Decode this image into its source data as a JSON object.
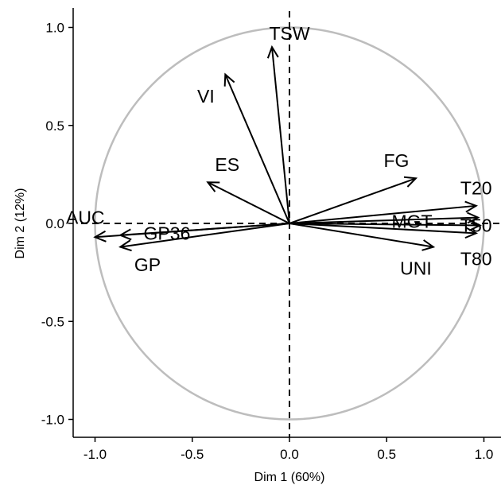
{
  "chart_data": {
    "type": "scatter",
    "subtype": "pca-correlation-circle",
    "title": "",
    "xlabel": "Dim 1 (60%)",
    "ylabel": "Dim 2 (12%)",
    "xlim": [
      -1.1,
      1.07
    ],
    "ylim": [
      -1.1,
      1.1
    ],
    "xticks": [
      {
        "value": -1.0,
        "label": "-1.0"
      },
      {
        "value": -0.5,
        "label": "-0.5"
      },
      {
        "value": 0.0,
        "label": "0.0"
      },
      {
        "value": 0.5,
        "label": "0.5"
      },
      {
        "value": 1.0,
        "label": "1.0"
      }
    ],
    "yticks": [
      {
        "value": 1.0,
        "label": "1.0"
      },
      {
        "value": 0.5,
        "label": "0.5"
      },
      {
        "value": 0.0,
        "label": "0.0"
      },
      {
        "value": -0.5,
        "label": "-0.5"
      },
      {
        "value": -1.0,
        "label": "-1.0"
      }
    ],
    "circle_color": "#bdbdbd",
    "vectors": [
      {
        "name": "TSW",
        "x": -0.09,
        "y": 0.9,
        "lx": 0.0,
        "ly": 0.97
      },
      {
        "name": "VI",
        "x": -0.33,
        "y": 0.76,
        "lx": -0.43,
        "ly": 0.65
      },
      {
        "name": "ES",
        "x": -0.42,
        "y": 0.21,
        "lx": -0.32,
        "ly": 0.3
      },
      {
        "name": "FG",
        "x": 0.65,
        "y": 0.23,
        "lx": 0.55,
        "ly": 0.32
      },
      {
        "name": "T20",
        "x": 0.96,
        "y": 0.09,
        "lx": 0.96,
        "ly": 0.18
      },
      {
        "name": "MGT",
        "x": 0.97,
        "y": 0.03,
        "lx": 0.63,
        "ly": 0.01
      },
      {
        "name": "T50",
        "x": 0.98,
        "y": -0.01,
        "lx": 0.96,
        "ly": -0.01
      },
      {
        "name": "T80",
        "x": 0.96,
        "y": -0.05,
        "lx": 0.96,
        "ly": -0.18
      },
      {
        "name": "UNI",
        "x": 0.74,
        "y": -0.12,
        "lx": 0.65,
        "ly": -0.23
      },
      {
        "name": "AUC",
        "x": -1.0,
        "y": -0.07,
        "lx": -1.05,
        "ly": 0.03
      },
      {
        "name": "GP36",
        "x": -0.87,
        "y": -0.06,
        "lx": -0.63,
        "ly": -0.05
      },
      {
        "name": "GP",
        "x": -0.87,
        "y": -0.12,
        "lx": -0.73,
        "ly": -0.21
      }
    ]
  }
}
